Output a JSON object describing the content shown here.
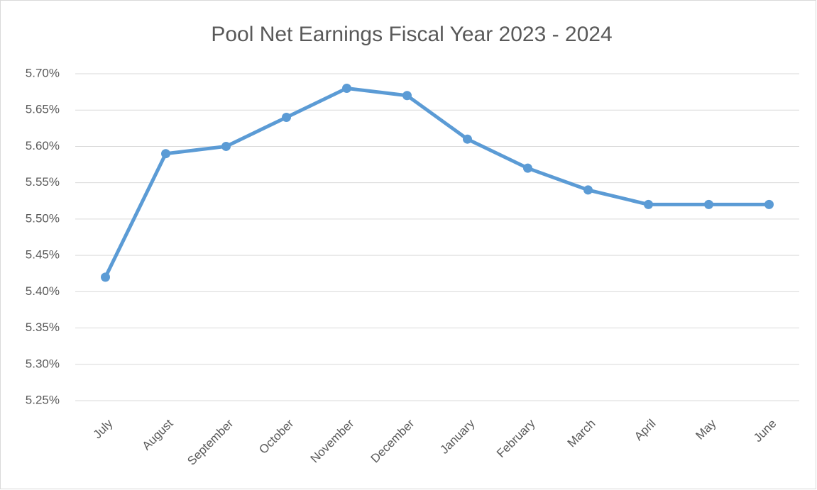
{
  "chart_data": {
    "type": "line",
    "title": "Pool Net Earnings Fiscal Year 2023 - 2024",
    "categories": [
      "July",
      "August",
      "September",
      "October",
      "November",
      "December",
      "January",
      "February",
      "March",
      "April",
      "May",
      "June"
    ],
    "values": [
      5.42,
      5.59,
      5.6,
      5.64,
      5.68,
      5.67,
      5.61,
      5.57,
      5.54,
      5.52,
      5.52,
      5.52
    ],
    "color": "#5b9bd5",
    "ylim": [
      5.25,
      5.7
    ],
    "yticks": [
      {
        "value": 5.25,
        "label": "5.25%"
      },
      {
        "value": 5.3,
        "label": "5.30%"
      },
      {
        "value": 5.35,
        "label": "5.35%"
      },
      {
        "value": 5.4,
        "label": "5.40%"
      },
      {
        "value": 5.45,
        "label": "5.45%"
      },
      {
        "value": 5.5,
        "label": "5.50%"
      },
      {
        "value": 5.55,
        "label": "5.55%"
      },
      {
        "value": 5.6,
        "label": "5.60%"
      },
      {
        "value": 5.65,
        "label": "5.65%"
      },
      {
        "value": 5.7,
        "label": "5.70%"
      }
    ],
    "grid": true
  }
}
